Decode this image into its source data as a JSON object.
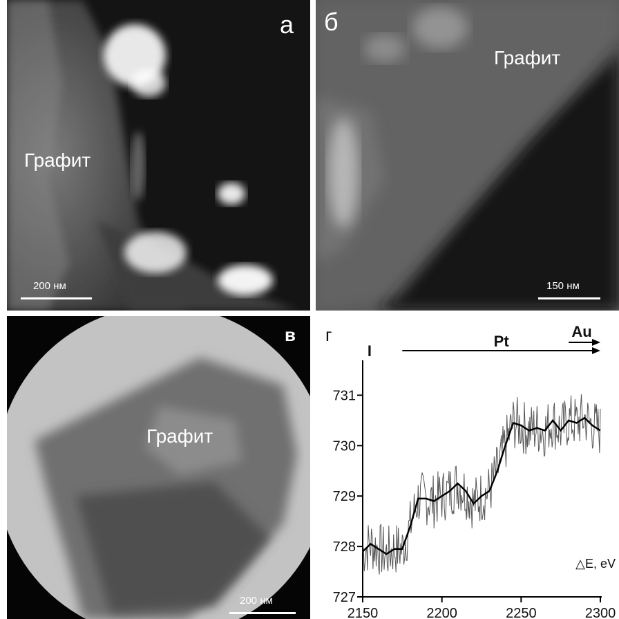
{
  "panels": {
    "a": {
      "letter": "а",
      "label": "Графит",
      "scale": "200 нм"
    },
    "b": {
      "letter": "б",
      "label": "Графит",
      "scale": "150 нм"
    },
    "c": {
      "letter": "в",
      "label": "Графит",
      "scale": "200 нм"
    },
    "d": {
      "letter": "г"
    }
  },
  "chart_data": {
    "type": "line",
    "title": "",
    "xlabel": "△E, eV",
    "ylabel": "",
    "xlim": [
      2150,
      2300
    ],
    "ylim": [
      727,
      731.5
    ],
    "x_ticks": [
      "2150",
      "2200",
      "2250",
      "2300"
    ],
    "y_ticks": [
      "727",
      "728",
      "729",
      "730",
      "731"
    ],
    "annotations": [
      {
        "text": "I",
        "x": 2153
      },
      {
        "text": "Pt",
        "x_start": 2175,
        "x_end": 2300
      },
      {
        "text": "Au",
        "x_start": 2280,
        "x_end": 2300
      }
    ],
    "series": [
      {
        "x": [
          2150,
          2155,
          2160,
          2165,
          2170,
          2175,
          2180,
          2185,
          2190,
          2195,
          2200,
          2205,
          2210,
          2215,
          2220,
          2225,
          2230,
          2235,
          2240,
          2245,
          2250,
          2255,
          2260,
          2265,
          2270,
          2275,
          2280,
          2285,
          2290,
          2295,
          2300
        ],
        "y": [
          727.9,
          728.05,
          727.95,
          727.85,
          727.95,
          727.95,
          728.4,
          728.95,
          728.95,
          728.9,
          729.0,
          729.1,
          729.25,
          729.1,
          728.85,
          729.0,
          729.1,
          729.5,
          730.0,
          730.45,
          730.4,
          730.3,
          730.35,
          730.3,
          730.5,
          730.3,
          730.5,
          730.45,
          730.55,
          730.4,
          730.3
        ]
      }
    ]
  }
}
